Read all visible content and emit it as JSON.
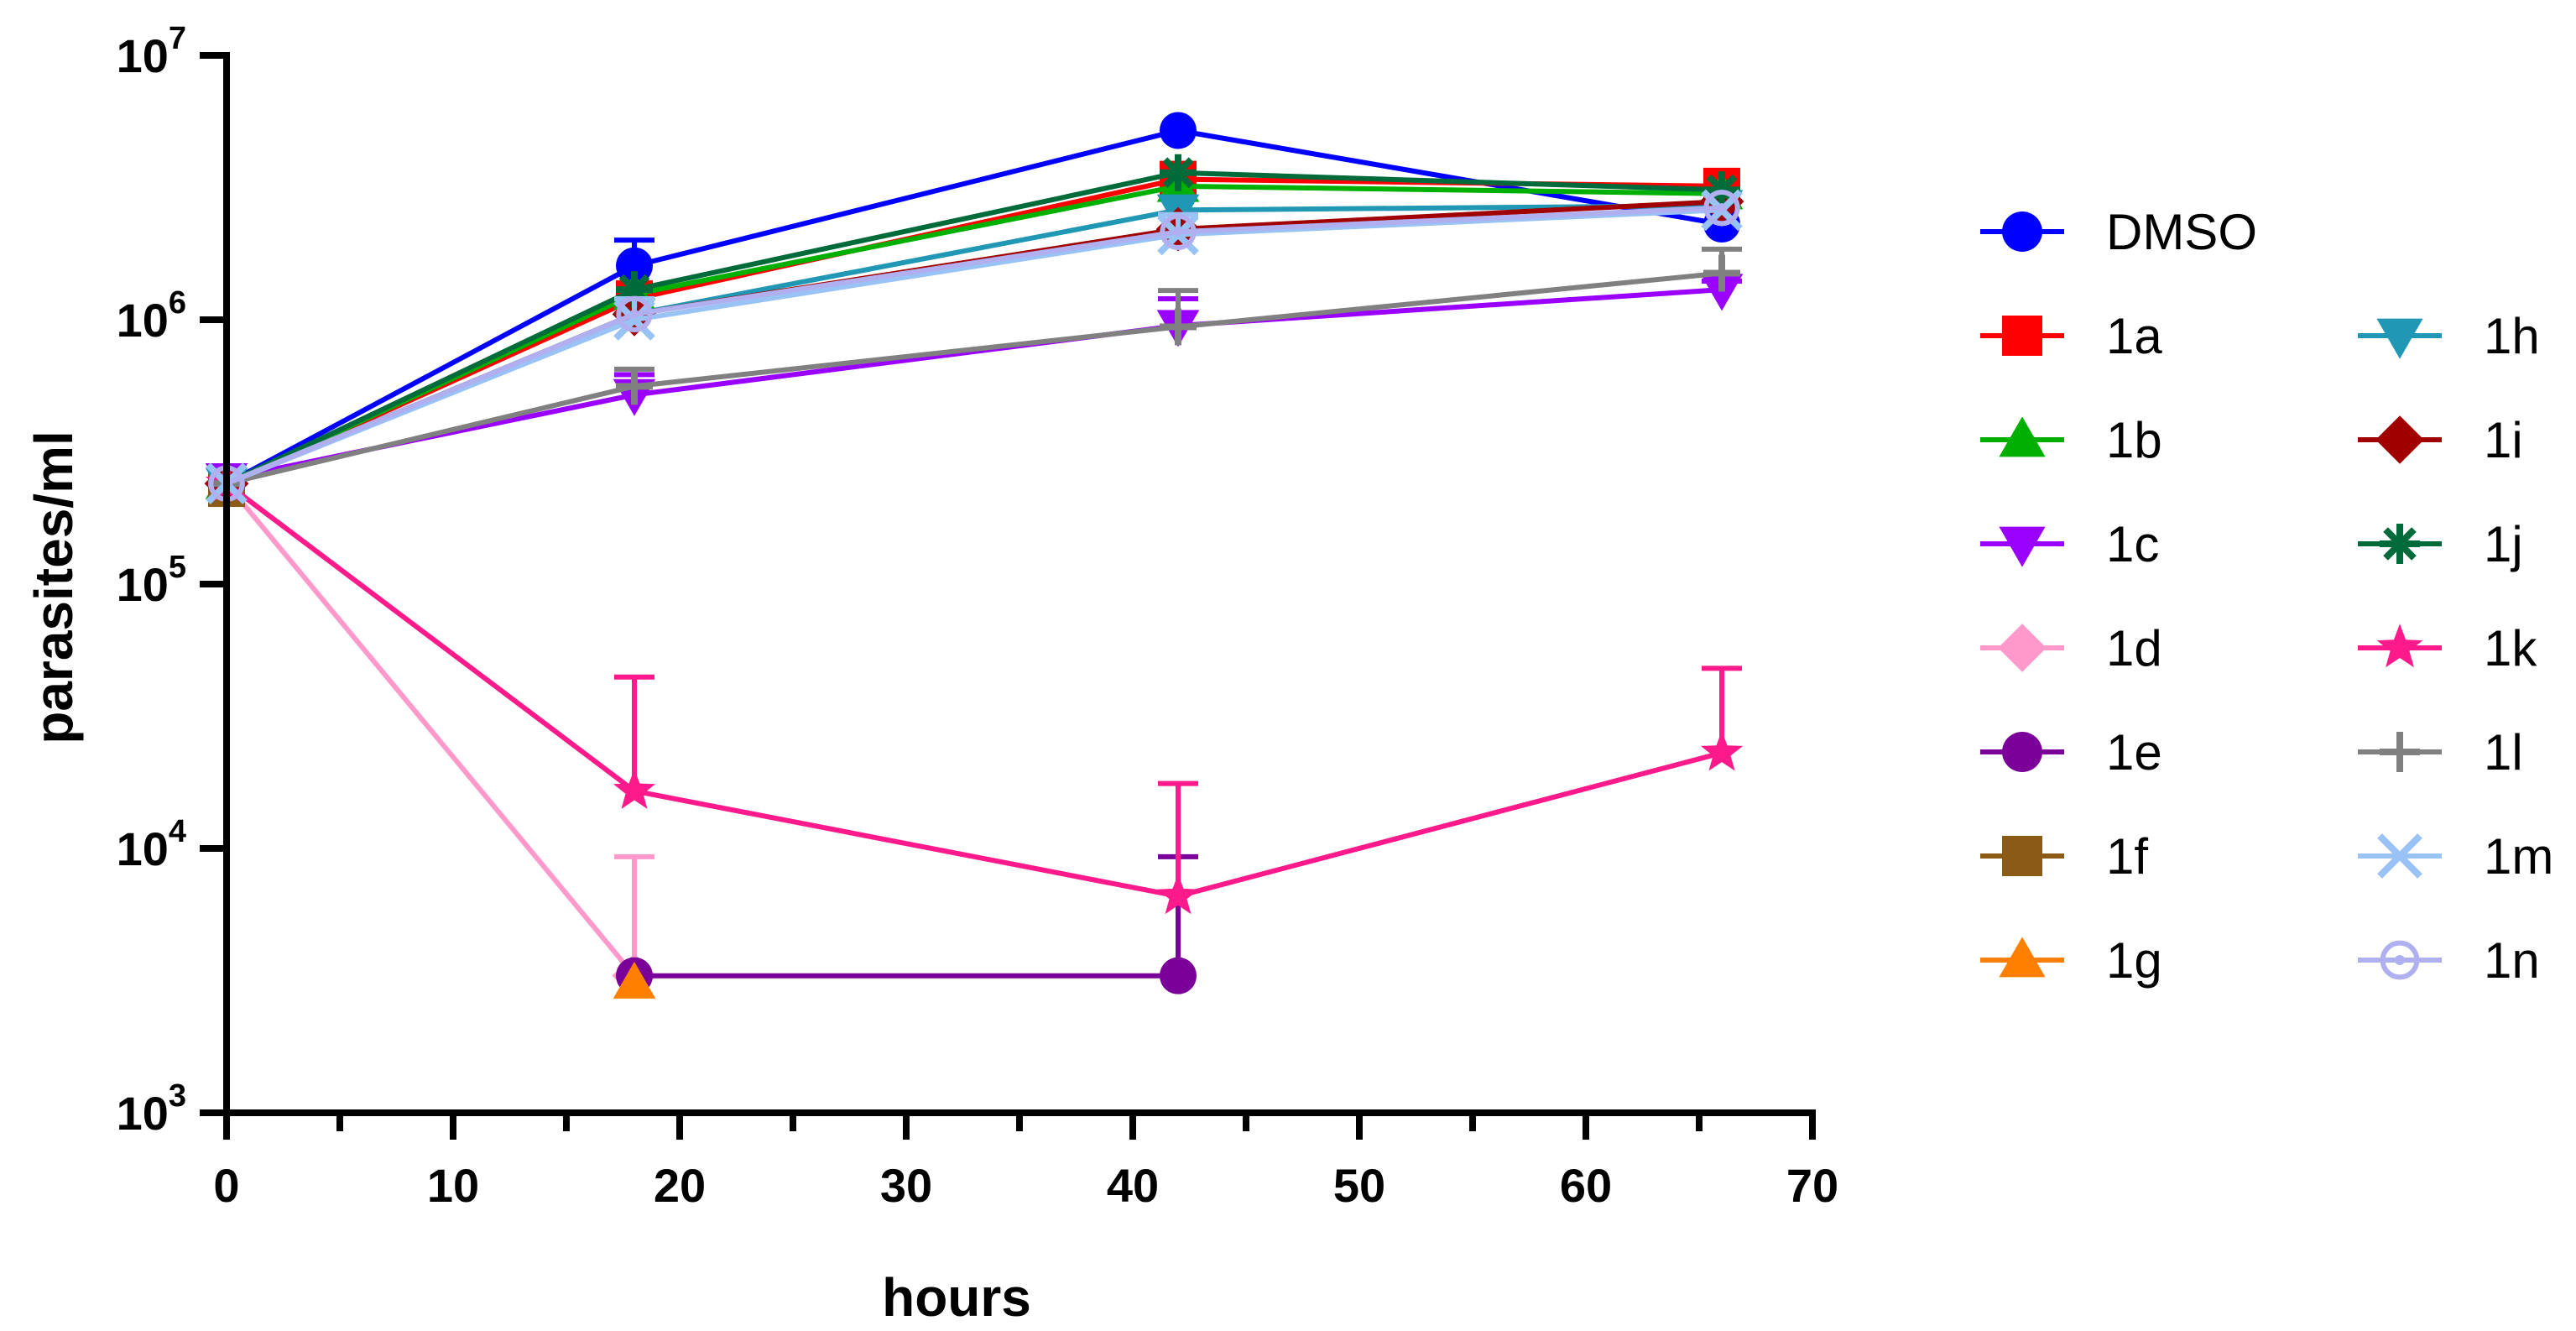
{
  "chart_data": {
    "type": "line",
    "title": "",
    "xlabel": "hours",
    "ylabel": "parasites/ml",
    "xlim": [
      0,
      70
    ],
    "ylim": [
      1000,
      10000000
    ],
    "yscale": "log",
    "x_ticks": [
      "0",
      "10",
      "20",
      "30",
      "40",
      "50",
      "60",
      "70"
    ],
    "y_ticks": [
      {
        "base": "10",
        "exp": "3",
        "value": 1000
      },
      {
        "base": "10",
        "exp": "4",
        "value": 10000
      },
      {
        "base": "10",
        "exp": "5",
        "value": 100000
      },
      {
        "base": "10",
        "exp": "6",
        "value": 1000000
      },
      {
        "base": "10",
        "exp": "7",
        "value": 10000000
      }
    ],
    "legend_position": "right",
    "grid": false,
    "series": [
      {
        "name": "DMSO",
        "color": "#0000ff",
        "marker": "circle",
        "x": [
          0,
          18,
          42,
          66
        ],
        "y": [
          240000,
          1600000,
          5200000,
          2300000
        ],
        "err": [
          0,
          400000,
          0,
          500000
        ]
      },
      {
        "name": "1a",
        "color": "#ff0000",
        "marker": "square",
        "x": [
          0,
          18,
          42,
          66
        ],
        "y": [
          240000,
          1200000,
          3400000,
          3200000
        ],
        "err": [
          0,
          0,
          0,
          0
        ]
      },
      {
        "name": "1b",
        "color": "#00b000",
        "marker": "triangle-up",
        "x": [
          0,
          18,
          42,
          66
        ],
        "y": [
          240000,
          1250000,
          3200000,
          3000000
        ],
        "err": [
          0,
          0,
          0,
          0
        ]
      },
      {
        "name": "1c",
        "color": "#9a00ff",
        "marker": "triangle-down",
        "x": [
          0,
          18,
          42,
          66
        ],
        "y": [
          250000,
          520000,
          950000,
          1300000
        ],
        "err": [
          0,
          100000,
          250000,
          100000
        ]
      },
      {
        "name": "1d",
        "color": "#ff99cc",
        "marker": "diamond",
        "x": [
          0,
          18
        ],
        "y": [
          240000,
          3300
        ],
        "err": [
          0,
          6000
        ]
      },
      {
        "name": "1e",
        "color": "#7b0099",
        "marker": "circle",
        "x": [
          18,
          42
        ],
        "y": [
          3300,
          3300
        ],
        "err": [
          0,
          6000
        ]
      },
      {
        "name": "1f",
        "color": "#8b5a14",
        "marker": "square",
        "x": [
          0
        ],
        "y": [
          230000
        ],
        "err": [
          0
        ]
      },
      {
        "name": "1g",
        "color": "#ff8000",
        "marker": "triangle-up",
        "x": [
          18
        ],
        "y": [
          3100
        ],
        "err": [
          0
        ]
      },
      {
        "name": "1h",
        "color": "#1f97b5",
        "marker": "triangle-down",
        "x": [
          0,
          18,
          42,
          66
        ],
        "y": [
          240000,
          1050000,
          2600000,
          2700000
        ],
        "err": [
          0,
          0,
          0,
          0
        ]
      },
      {
        "name": "1i",
        "color": "#a00000",
        "marker": "diamond",
        "x": [
          0,
          18,
          42,
          66
        ],
        "y": [
          240000,
          1050000,
          2200000,
          2800000
        ],
        "err": [
          0,
          0,
          300000,
          0
        ]
      },
      {
        "name": "1j",
        "color": "#006b3a",
        "marker": "asterisk",
        "x": [
          0,
          18,
          42,
          66
        ],
        "y": [
          240000,
          1300000,
          3600000,
          3100000
        ],
        "err": [
          0,
          0,
          0,
          0
        ]
      },
      {
        "name": "1k",
        "color": "#ff1a8c",
        "marker": "star",
        "x": [
          0,
          18,
          42,
          66
        ],
        "y": [
          240000,
          16500,
          6600,
          23000
        ],
        "err": [
          0,
          28000,
          11000,
          25000
        ]
      },
      {
        "name": "1l",
        "color": "#808080",
        "marker": "plus",
        "x": [
          0,
          18,
          42,
          66
        ],
        "y": [
          240000,
          560000,
          940000,
          1500000
        ],
        "err": [
          0,
          90000,
          350000,
          350000
        ]
      },
      {
        "name": "1m",
        "color": "#99c2f5",
        "marker": "x",
        "x": [
          0,
          18,
          42,
          66
        ],
        "y": [
          240000,
          1000000,
          2100000,
          2600000
        ],
        "err": [
          0,
          200000,
          400000,
          0
        ]
      },
      {
        "name": "1n",
        "color": "#b0b0f0",
        "marker": "circle-dot",
        "x": [
          0,
          18,
          42,
          66
        ],
        "y": [
          240000,
          1050000,
          2150000,
          2650000
        ],
        "err": [
          0,
          0,
          0,
          0
        ]
      }
    ]
  }
}
